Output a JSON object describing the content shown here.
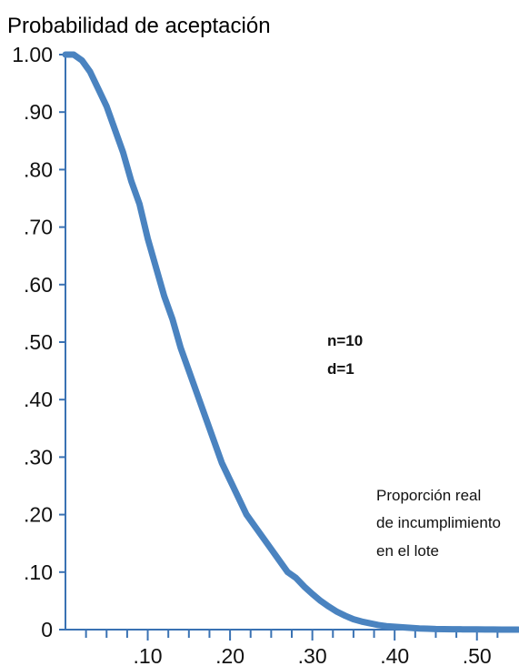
{
  "chart_data": {
    "type": "line",
    "ylabel": "Probabilidad de aceptación",
    "xlabel": "Proporción real de incumplimiento en el lote",
    "xlabel_lines": [
      "Proporción real",
      "de incumplimiento",
      "en el lote"
    ],
    "annotations": [
      "n=10",
      "d=1"
    ],
    "x_ticks": [
      ".10",
      ".20",
      ".30",
      ".40",
      ".50"
    ],
    "y_ticks": [
      "0",
      ".10",
      ".20",
      ".30",
      ".40",
      ".50",
      ".60",
      ".70",
      ".80",
      ".90",
      "1.00"
    ],
    "xlim": [
      0,
      0.55
    ],
    "ylim": [
      0,
      1.0
    ],
    "grid": false,
    "series_color": "#4a83c0",
    "axis_color": "#3a72b3",
    "series": [
      {
        "x": [
          0.0,
          0.01,
          0.02,
          0.03,
          0.04,
          0.05,
          0.06,
          0.07,
          0.08,
          0.09,
          0.1,
          0.11,
          0.12,
          0.13,
          0.14,
          0.15,
          0.16,
          0.17,
          0.18,
          0.19,
          0.2,
          0.21,
          0.22,
          0.23,
          0.24,
          0.25,
          0.26,
          0.27,
          0.28,
          0.29,
          0.3,
          0.31,
          0.32,
          0.33,
          0.34,
          0.35,
          0.36,
          0.37,
          0.38,
          0.39,
          0.4,
          0.41,
          0.42,
          0.43,
          0.44,
          0.45,
          0.46,
          0.47,
          0.48,
          0.49,
          0.5,
          0.51,
          0.52,
          0.53,
          0.54,
          0.55
        ],
        "y": [
          1.0,
          1.0,
          0.99,
          0.97,
          0.94,
          0.91,
          0.87,
          0.83,
          0.78,
          0.74,
          0.68,
          0.63,
          0.58,
          0.54,
          0.49,
          0.45,
          0.41,
          0.37,
          0.33,
          0.29,
          0.26,
          0.23,
          0.2,
          0.18,
          0.16,
          0.14,
          0.12,
          0.1,
          0.09,
          0.075,
          0.062,
          0.05,
          0.04,
          0.031,
          0.024,
          0.018,
          0.014,
          0.011,
          0.008,
          0.006,
          0.005,
          0.004,
          0.003,
          0.002,
          0.0015,
          0.001,
          0.0008,
          0.0006,
          0.0005,
          0.0004,
          0.0003,
          0.0002,
          0.00015,
          0.0001,
          5e-05,
          0.0
        ]
      }
    ]
  }
}
